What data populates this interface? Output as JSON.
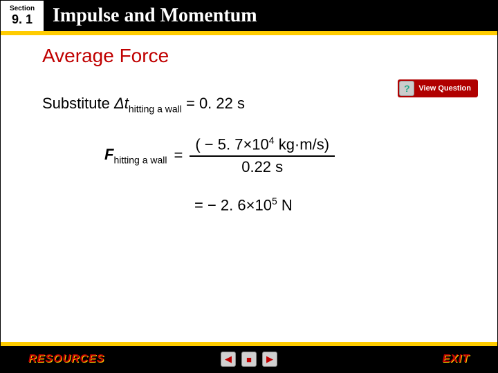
{
  "header": {
    "section_label": "Section",
    "section_number": "9. 1",
    "title": "Impulse and Momentum"
  },
  "subtitle": "Average Force",
  "view_question": {
    "icon": "?",
    "label": "View Question"
  },
  "content": {
    "substitute_prefix": "Substitute ",
    "delta": "Δt",
    "delta_sub": "hitting a wall",
    "substitute_eq": " = 0. 22 s",
    "force_symbol": "F",
    "force_sub": "hitting a wall",
    "equals1": "=",
    "numerator_prefix": "( − 5. 7×10",
    "numerator_sup": "4",
    "numerator_suffix": " kg·m/s)",
    "denominator": "0.22 s",
    "result_prefix": "= − 2. 6×10",
    "result_sup": "5",
    "result_suffix": " N"
  },
  "footer": {
    "resources": "RESOURCES",
    "exit": "EXIT",
    "prev": "◀",
    "home": "■",
    "next": "▶"
  },
  "colors": {
    "accent_red": "#c00000",
    "accent_yellow": "#ffcc00"
  }
}
